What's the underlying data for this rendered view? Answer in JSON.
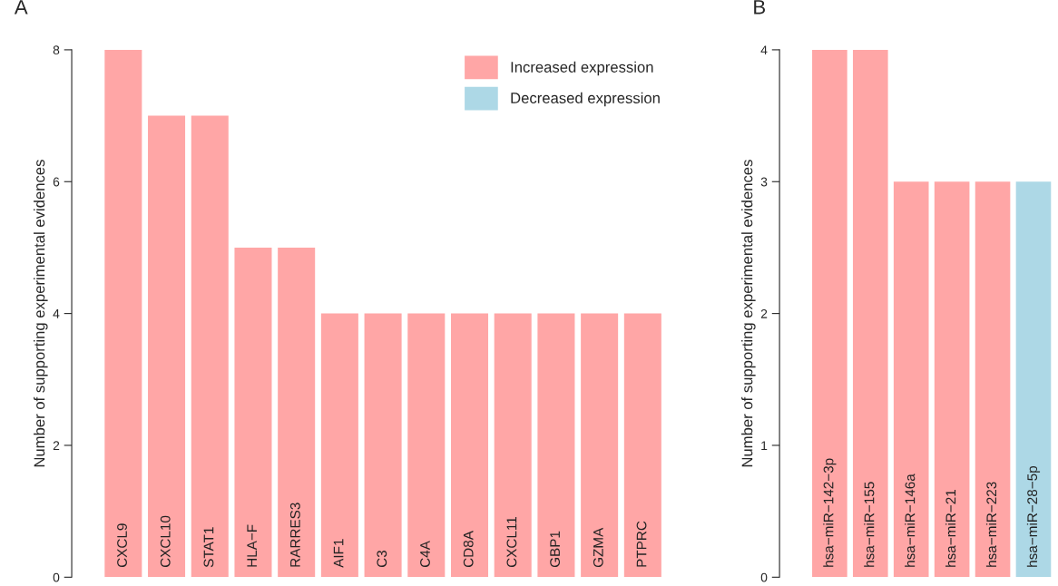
{
  "chart_data": [
    {
      "type": "bar",
      "title": "A",
      "ylabel": "Number of supporting experimental evidences",
      "categories": [
        "CXCL9",
        "CXCL10",
        "STAT1",
        "HLA−F",
        "RARRES3",
        "AIF1",
        "C3",
        "C4A",
        "CD8A",
        "CXCL11",
        "GBP1",
        "GZMA",
        "PTPRC"
      ],
      "series": [
        {
          "name": "Increased expression",
          "color": "#ffa6a6",
          "values": [
            8,
            7,
            7,
            5,
            5,
            4,
            4,
            4,
            4,
            4,
            4,
            4,
            4
          ]
        },
        {
          "name": "Decreased expression",
          "color": "#add8e6",
          "values": [
            null,
            null,
            null,
            null,
            null,
            null,
            null,
            null,
            null,
            null,
            null,
            null,
            null
          ]
        }
      ],
      "ylim": [
        0,
        8
      ],
      "yticks": [
        0,
        2,
        4,
        6,
        8
      ],
      "grid": false,
      "legend": "top right"
    },
    {
      "type": "bar",
      "title": "B",
      "ylabel": "Number of supporting experimental evidences",
      "categories": [
        "hsa−miR−142−3p",
        "hsa−miR−155",
        "hsa−miR−146a",
        "hsa−miR−21",
        "hsa−miR−223",
        "hsa−miR−28−5p"
      ],
      "series": [
        {
          "color": "#ffa6a6",
          "values": [
            4,
            4,
            3,
            3,
            3,
            null
          ]
        },
        {
          "color": "#add8e6",
          "values": [
            null,
            null,
            null,
            null,
            null,
            3
          ]
        }
      ],
      "ylim": [
        0,
        4
      ],
      "yticks": [
        0,
        1,
        2,
        3,
        4
      ],
      "grid": false
    }
  ]
}
